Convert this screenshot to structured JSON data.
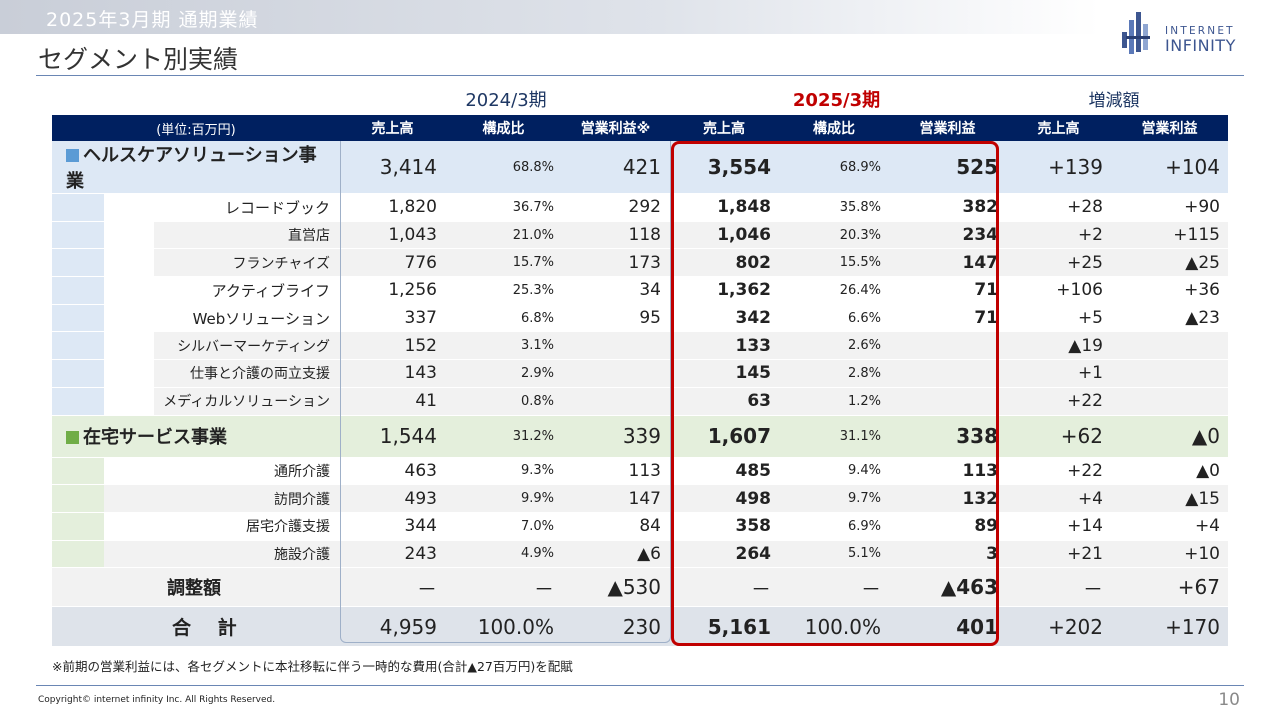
{
  "header": {
    "band_title": "2025年3月期 通期業績",
    "page_title": "セグメント別実績"
  },
  "logo": {
    "line1": "INTERNET",
    "line2": "INFINITY"
  },
  "periods": {
    "prev": "2024/3期",
    "cur": "2025/3期",
    "diff": "増減額"
  },
  "columns": {
    "unit": "(単位:百万円)",
    "prev": [
      "売上高",
      "構成比",
      "営業利益※"
    ],
    "cur": [
      "売上高",
      "構成比",
      "営業利益"
    ],
    "diff": [
      "売上高",
      "営業利益"
    ]
  },
  "rows": [
    {
      "name": "ヘルスケアソリューション事業",
      "prev": [
        "3,414",
        "68.8%",
        "421"
      ],
      "cur": [
        "3,554",
        "68.9%",
        "525"
      ],
      "diff": [
        "+139",
        "+104"
      ]
    },
    {
      "name": "レコードブック",
      "prev": [
        "1,820",
        "36.7%",
        "292"
      ],
      "cur": [
        "1,848",
        "35.8%",
        "382"
      ],
      "diff": [
        "+28",
        "+90"
      ]
    },
    {
      "name": "直営店",
      "prev": [
        "1,043",
        "21.0%",
        "118"
      ],
      "cur": [
        "1,046",
        "20.3%",
        "234"
      ],
      "diff": [
        "+2",
        "+115"
      ]
    },
    {
      "name": "フランチャイズ",
      "prev": [
        "776",
        "15.7%",
        "173"
      ],
      "cur": [
        "802",
        "15.5%",
        "147"
      ],
      "diff": [
        "+25",
        "▲25"
      ]
    },
    {
      "name": "アクティブライフ",
      "prev": [
        "1,256",
        "25.3%",
        "34"
      ],
      "cur": [
        "1,362",
        "26.4%",
        "71"
      ],
      "diff": [
        "+106",
        "+36"
      ]
    },
    {
      "name": "Webソリューション",
      "prev": [
        "337",
        "6.8%",
        "95"
      ],
      "cur": [
        "342",
        "6.6%",
        "71"
      ],
      "diff": [
        "+5",
        "▲23"
      ]
    },
    {
      "name": "シルバーマーケティング",
      "prev": [
        "152",
        "3.1%",
        ""
      ],
      "cur": [
        "133",
        "2.6%",
        ""
      ],
      "diff": [
        "▲19",
        ""
      ]
    },
    {
      "name": "仕事と介護の両立支援",
      "prev": [
        "143",
        "2.9%",
        ""
      ],
      "cur": [
        "145",
        "2.8%",
        ""
      ],
      "diff": [
        "+1",
        ""
      ]
    },
    {
      "name": "メディカルソリューション",
      "prev": [
        "41",
        "0.8%",
        ""
      ],
      "cur": [
        "63",
        "1.2%",
        ""
      ],
      "diff": [
        "+22",
        ""
      ]
    },
    {
      "name": "在宅サービス事業",
      "prev": [
        "1,544",
        "31.2%",
        "339"
      ],
      "cur": [
        "1,607",
        "31.1%",
        "338"
      ],
      "diff": [
        "+62",
        "▲0"
      ]
    },
    {
      "name": "通所介護",
      "prev": [
        "463",
        "9.3%",
        "113"
      ],
      "cur": [
        "485",
        "9.4%",
        "113"
      ],
      "diff": [
        "+22",
        "▲0"
      ]
    },
    {
      "name": "訪問介護",
      "prev": [
        "493",
        "9.9%",
        "147"
      ],
      "cur": [
        "498",
        "9.7%",
        "132"
      ],
      "diff": [
        "+4",
        "▲15"
      ]
    },
    {
      "name": "居宅介護支援",
      "prev": [
        "344",
        "7.0%",
        "84"
      ],
      "cur": [
        "358",
        "6.9%",
        "89"
      ],
      "diff": [
        "+14",
        "+4"
      ]
    },
    {
      "name": "施設介護",
      "prev": [
        "243",
        "4.9%",
        "▲6"
      ],
      "cur": [
        "264",
        "5.1%",
        "3"
      ],
      "diff": [
        "+21",
        "+10"
      ]
    },
    {
      "name": "調整額",
      "prev": [
        "－",
        "－",
        "▲530"
      ],
      "cur": [
        "－",
        "－",
        "▲463"
      ],
      "diff": [
        "－",
        "+67"
      ]
    },
    {
      "name": "合 計",
      "prev": [
        "4,959",
        "100.0%",
        "230"
      ],
      "cur": [
        "5,161",
        "100.0%",
        "401"
      ],
      "diff": [
        "+202",
        "+170"
      ]
    }
  ],
  "colors": {
    "header_navy": "#002060",
    "healthcare_fill": "#dde8f5",
    "homecare_fill": "#e4efdc",
    "segment_square_blue": "#5b9bd5",
    "segment_square_green": "#70ad47",
    "current_frame_red": "#c00000"
  },
  "footnote": "※前期の営業利益には、各セグメントに本社移転に伴う一時的な費用(合計▲27百万円)を配賦",
  "copyright": "Copyright© internet infinity Inc. All Rights Reserved.",
  "page_number": "10"
}
